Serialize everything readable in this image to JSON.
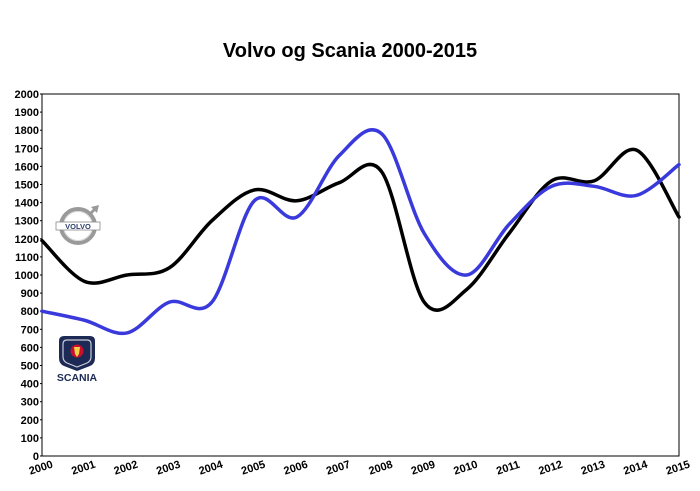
{
  "chart_data": {
    "type": "line",
    "title": "Volvo og Scania 2000-2015",
    "xlabel": "",
    "ylabel": "",
    "x": [
      2000,
      2001,
      2002,
      2003,
      2004,
      2005,
      2006,
      2007,
      2008,
      2009,
      2010,
      2011,
      2012,
      2013,
      2014,
      2015
    ],
    "ylim": [
      0,
      2000
    ],
    "ytick_step": 100,
    "grid": false,
    "series": [
      {
        "color": "#000000",
        "logo": "volvo-logo",
        "values": [
          1190,
          965,
          1000,
          1040,
          1300,
          1470,
          1410,
          1510,
          1570,
          850,
          920,
          1230,
          1520,
          1520,
          1690,
          1320
        ]
      },
      {
        "color": "#3a3adc",
        "logo": "scania-logo",
        "values": [
          800,
          750,
          680,
          850,
          850,
          1410,
          1320,
          1660,
          1780,
          1230,
          1000,
          1280,
          1490,
          1490,
          1440,
          1610
        ]
      }
    ]
  },
  "logos": {
    "volvo": {
      "text": "VOLVO",
      "icon": "volvo-logo"
    },
    "scania": {
      "text": "SCANIA",
      "icon": "scania-logo"
    }
  }
}
